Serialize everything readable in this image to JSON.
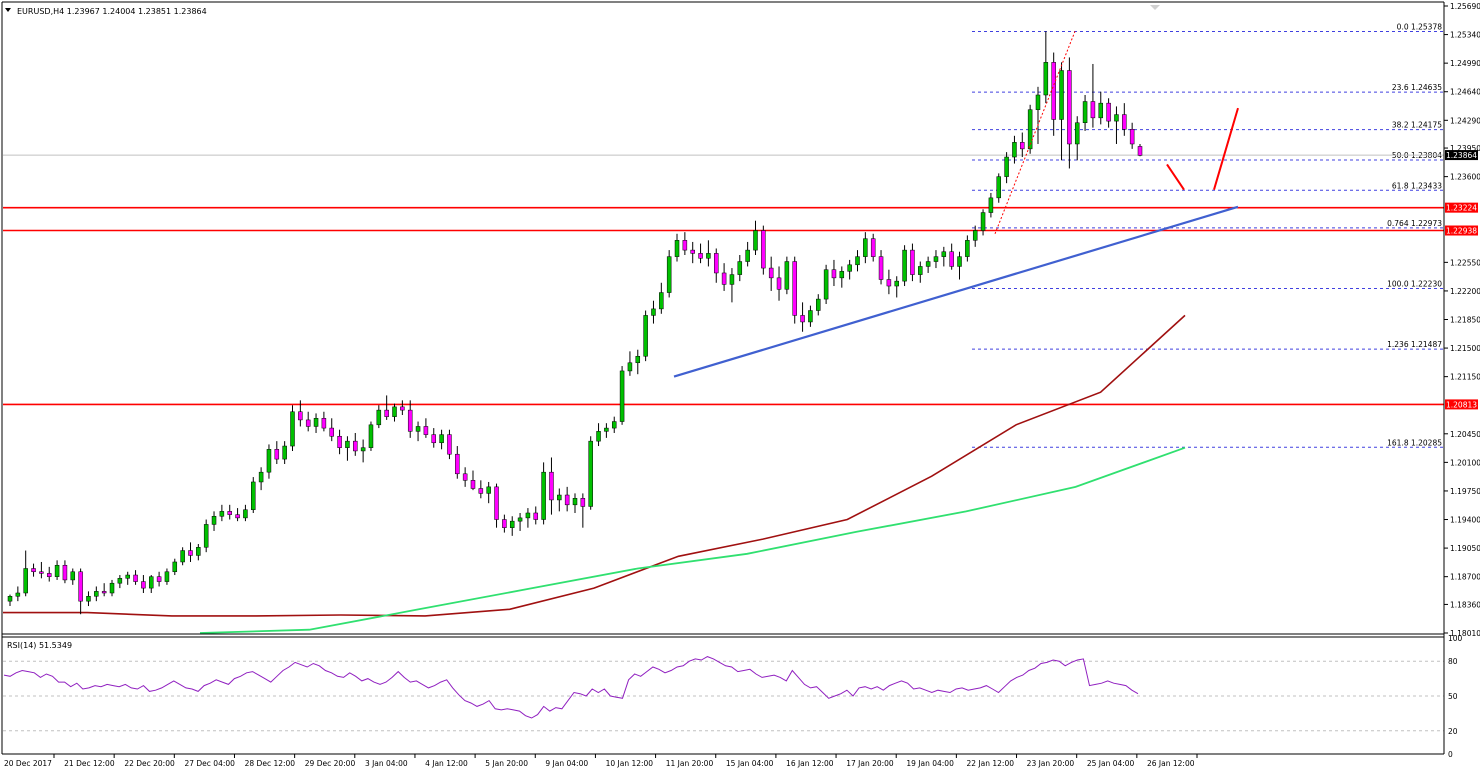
{
  "header": {
    "symbol_info": "EURUSD,H4  1.23967 1.24004 1.23851 1.23864"
  },
  "rsi_label": "RSI(14) 51.5349",
  "colors": {
    "bull": "#00c000",
    "bear": "#ff00ff",
    "hline": "#ff0000",
    "trend": "#4060d0",
    "ma200": "#a01010",
    "ma_green": "#30e070",
    "fib": "#4040e0",
    "rsi": "#9020c0",
    "grid": "#c0c0c0"
  },
  "chart_data": {
    "type": "candlestick",
    "price_axis": {
      "ylim": [
        1.1801,
        1.2569
      ],
      "ticks": [
        "1.25690",
        "1.25340",
        "1.24990",
        "1.24640",
        "1.24290",
        "1.23950",
        "1.23600",
        "1.22550",
        "1.22200",
        "1.21850",
        "1.21500",
        "1.21150",
        "1.20450",
        "1.20100",
        "1.19750",
        "1.19400",
        "1.19050",
        "1.18700",
        "1.18360",
        "1.18010"
      ]
    },
    "time_axis": {
      "labels": [
        "20 Dec 2017",
        "21 Dec 12:00",
        "22 Dec 20:00",
        "27 Dec 04:00",
        "28 Dec 12:00",
        "29 Dec 20:00",
        "3 Jan 04:00",
        "4 Jan 12:00",
        "5 Jan 20:00",
        "9 Jan 04:00",
        "10 Jan 12:00",
        "11 Jan 20:00",
        "15 Jan 04:00",
        "16 Jan 12:00",
        "17 Jan 20:00",
        "19 Jan 04:00",
        "22 Jan 12:00",
        "23 Jan 20:00",
        "25 Jan 04:00",
        "26 Jan 12:00"
      ]
    },
    "current_price": "1.23864",
    "horizontal_levels": [
      {
        "value": 1.2322,
        "label": "1.23224"
      },
      {
        "value": 1.2294,
        "label": "1.22938"
      },
      {
        "value": 1.2081,
        "label": "1.20813"
      }
    ],
    "fibonacci": [
      {
        "value": 1.25378,
        "label": "0.0  1.25378"
      },
      {
        "value": 1.24635,
        "label": "23.6  1.24635"
      },
      {
        "value": 1.24175,
        "label": "38.2  1.24175"
      },
      {
        "value": 1.23804,
        "label": "50.0  1.23804"
      },
      {
        "value": 1.23433,
        "label": "61.8  1.23433"
      },
      {
        "value": 1.22973,
        "label": "0.764  1.22973"
      },
      {
        "value": 1.2223,
        "label": "100.0  1.22230"
      },
      {
        "value": 1.21487,
        "label": "1.236  1.21487"
      },
      {
        "value": 1.20285,
        "label": "161.8  1.20285"
      }
    ],
    "candles": [
      [
        1.184,
        1.1848,
        1.1834,
        1.1846
      ],
      [
        1.1846,
        1.1858,
        1.184,
        1.185
      ],
      [
        1.185,
        1.1902,
        1.1846,
        1.188
      ],
      [
        1.188,
        1.1886,
        1.187,
        1.1876
      ],
      [
        1.1876,
        1.1888,
        1.1868,
        1.1874
      ],
      [
        1.1874,
        1.1882,
        1.1864,
        1.187
      ],
      [
        1.187,
        1.189,
        1.1866,
        1.1884
      ],
      [
        1.1884,
        1.189,
        1.1862,
        1.1866
      ],
      [
        1.1866,
        1.188,
        1.186,
        1.1876
      ],
      [
        1.1876,
        1.188,
        1.1824,
        1.184
      ],
      [
        1.184,
        1.1852,
        1.1834,
        1.1846
      ],
      [
        1.1846,
        1.1858,
        1.184,
        1.1852
      ],
      [
        1.1852,
        1.1862,
        1.1846,
        1.185
      ],
      [
        1.185,
        1.1866,
        1.1846,
        1.1862
      ],
      [
        1.1862,
        1.1872,
        1.1856,
        1.1868
      ],
      [
        1.1868,
        1.1876,
        1.186,
        1.1872
      ],
      [
        1.1872,
        1.1878,
        1.186,
        1.1864
      ],
      [
        1.1864,
        1.1872,
        1.185,
        1.1856
      ],
      [
        1.1856,
        1.1872,
        1.185,
        1.187
      ],
      [
        1.187,
        1.1876,
        1.1858,
        1.1864
      ],
      [
        1.1864,
        1.188,
        1.186,
        1.1876
      ],
      [
        1.1876,
        1.1892,
        1.1872,
        1.1888
      ],
      [
        1.1888,
        1.1906,
        1.1884,
        1.1902
      ],
      [
        1.1902,
        1.1912,
        1.1888,
        1.1896
      ],
      [
        1.1896,
        1.191,
        1.189,
        1.1906
      ],
      [
        1.1906,
        1.194,
        1.19,
        1.1934
      ],
      [
        1.1934,
        1.195,
        1.1926,
        1.1944
      ],
      [
        1.1944,
        1.1958,
        1.1938,
        1.195
      ],
      [
        1.195,
        1.1958,
        1.194,
        1.1946
      ],
      [
        1.1946,
        1.1954,
        1.1938,
        1.1942
      ],
      [
        1.1942,
        1.1958,
        1.1938,
        1.1952
      ],
      [
        1.1952,
        1.1992,
        1.1948,
        1.1986
      ],
      [
        1.1986,
        1.2004,
        1.1976,
        1.1998
      ],
      [
        1.1998,
        1.2032,
        1.199,
        1.2026
      ],
      [
        1.2026,
        1.2036,
        1.2008,
        1.2014
      ],
      [
        1.2014,
        1.2036,
        1.2008,
        1.203
      ],
      [
        1.203,
        1.208,
        1.2024,
        1.2072
      ],
      [
        1.2072,
        1.2086,
        1.2054,
        1.2062
      ],
      [
        1.2062,
        1.2072,
        1.2048,
        1.2054
      ],
      [
        1.2054,
        1.207,
        1.2046,
        1.2064
      ],
      [
        1.2064,
        1.2072,
        1.2048,
        1.2052
      ],
      [
        1.2052,
        1.2064,
        1.2036,
        1.2042
      ],
      [
        1.2042,
        1.205,
        1.202,
        1.2028
      ],
      [
        1.2028,
        1.2042,
        1.2012,
        1.2036
      ],
      [
        1.2036,
        1.2046,
        1.2018,
        1.2024
      ],
      [
        1.2024,
        1.2038,
        1.201,
        1.2028
      ],
      [
        1.2028,
        1.206,
        1.2024,
        1.2056
      ],
      [
        1.2056,
        1.208,
        1.2052,
        1.2074
      ],
      [
        1.2074,
        1.2092,
        1.2062,
        1.2066
      ],
      [
        1.2066,
        1.2082,
        1.206,
        1.2078
      ],
      [
        1.2078,
        1.2086,
        1.2068,
        1.2074
      ],
      [
        1.2074,
        1.2086,
        1.204,
        1.2048
      ],
      [
        1.2048,
        1.206,
        1.2036,
        1.2054
      ],
      [
        1.2054,
        1.2064,
        1.204,
        1.2044
      ],
      [
        1.2044,
        1.2052,
        1.2028,
        1.2034
      ],
      [
        1.2034,
        1.205,
        1.2026,
        1.2044
      ],
      [
        1.2044,
        1.205,
        1.2014,
        1.202
      ],
      [
        1.202,
        1.203,
        1.199,
        1.1996
      ],
      [
        1.1996,
        1.2004,
        1.198,
        1.1988
      ],
      [
        1.1988,
        1.2,
        1.1976,
        1.1978
      ],
      [
        1.1978,
        1.1988,
        1.1966,
        1.1972
      ],
      [
        1.1972,
        1.1986,
        1.196,
        1.198
      ],
      [
        1.198,
        1.1984,
        1.193,
        1.194
      ],
      [
        1.194,
        1.1946,
        1.1924,
        1.193
      ],
      [
        1.193,
        1.1944,
        1.192,
        1.1938
      ],
      [
        1.1938,
        1.1948,
        1.1926,
        1.1942
      ],
      [
        1.1942,
        1.1954,
        1.193,
        1.1948
      ],
      [
        1.1948,
        1.1956,
        1.1934,
        1.194
      ],
      [
        1.194,
        1.201,
        1.1934,
        1.1998
      ],
      [
        1.1998,
        1.2016,
        1.1946,
        1.1964
      ],
      [
        1.1964,
        1.1978,
        1.195,
        1.197
      ],
      [
        1.197,
        1.198,
        1.195,
        1.1958
      ],
      [
        1.1958,
        1.1972,
        1.1948,
        1.1966
      ],
      [
        1.1966,
        1.1972,
        1.193,
        1.1956
      ],
      [
        1.1956,
        1.2042,
        1.1952,
        1.2036
      ],
      [
        1.2036,
        1.2058,
        1.203,
        1.2048
      ],
      [
        1.2048,
        1.2058,
        1.204,
        1.2052
      ],
      [
        1.2052,
        1.2066,
        1.2046,
        1.206
      ],
      [
        1.206,
        1.2128,
        1.2056,
        1.2122
      ],
      [
        1.2122,
        1.2146,
        1.2116,
        1.2132
      ],
      [
        1.2132,
        1.2148,
        1.2118,
        1.214
      ],
      [
        1.214,
        1.2196,
        1.2134,
        1.219
      ],
      [
        1.219,
        1.2208,
        1.218,
        1.2198
      ],
      [
        1.2198,
        1.223,
        1.2192,
        1.2218
      ],
      [
        1.2218,
        1.227,
        1.2212,
        1.2262
      ],
      [
        1.2262,
        1.229,
        1.2256,
        1.2282
      ],
      [
        1.2282,
        1.2292,
        1.2264,
        1.227
      ],
      [
        1.227,
        1.228,
        1.2254,
        1.2266
      ],
      [
        1.2266,
        1.2278,
        1.2254,
        1.226
      ],
      [
        1.226,
        1.2282,
        1.225,
        1.2266
      ],
      [
        1.2266,
        1.2272,
        1.223,
        1.2242
      ],
      [
        1.2242,
        1.2254,
        1.222,
        1.2228
      ],
      [
        1.2228,
        1.2248,
        1.2206,
        1.224
      ],
      [
        1.224,
        1.2264,
        1.2232,
        1.2256
      ],
      [
        1.2256,
        1.228,
        1.225,
        1.227
      ],
      [
        1.227,
        1.2306,
        1.2264,
        1.2294
      ],
      [
        1.2294,
        1.23,
        1.224,
        1.2248
      ],
      [
        1.2248,
        1.2262,
        1.222,
        1.2236
      ],
      [
        1.2236,
        1.225,
        1.2208,
        1.2222
      ],
      [
        1.2222,
        1.2262,
        1.2216,
        1.2256
      ],
      [
        1.2256,
        1.2262,
        1.218,
        1.219
      ],
      [
        1.219,
        1.2206,
        1.217,
        1.2182
      ],
      [
        1.2182,
        1.2202,
        1.2176,
        1.2196
      ],
      [
        1.2196,
        1.2216,
        1.219,
        1.221
      ],
      [
        1.221,
        1.2252,
        1.2204,
        1.2246
      ],
      [
        1.2246,
        1.2258,
        1.2226,
        1.2236
      ],
      [
        1.2236,
        1.225,
        1.2224,
        1.2244
      ],
      [
        1.2244,
        1.2258,
        1.2234,
        1.2252
      ],
      [
        1.2252,
        1.227,
        1.2244,
        1.2262
      ],
      [
        1.2262,
        1.2292,
        1.2254,
        1.2284
      ],
      [
        1.2284,
        1.229,
        1.2256,
        1.2262
      ],
      [
        1.2262,
        1.227,
        1.2228,
        1.2234
      ],
      [
        1.2234,
        1.2246,
        1.2216,
        1.2226
      ],
      [
        1.2226,
        1.2238,
        1.2212,
        1.2232
      ],
      [
        1.2232,
        1.2276,
        1.2226,
        1.227
      ],
      [
        1.227,
        1.2278,
        1.2232,
        1.224
      ],
      [
        1.224,
        1.2256,
        1.223,
        1.225
      ],
      [
        1.225,
        1.2262,
        1.2242,
        1.2256
      ],
      [
        1.2256,
        1.227,
        1.2248,
        1.2262
      ],
      [
        1.2262,
        1.2274,
        1.225,
        1.2268
      ],
      [
        1.2268,
        1.2278,
        1.2246,
        1.225
      ],
      [
        1.225,
        1.2268,
        1.2234,
        1.2262
      ],
      [
        1.2262,
        1.2288,
        1.2256,
        1.2282
      ],
      [
        1.2282,
        1.23,
        1.2274,
        1.2294
      ],
      [
        1.2294,
        1.232,
        1.2288,
        1.2316
      ],
      [
        1.2316,
        1.234,
        1.231,
        1.2334
      ],
      [
        1.2334,
        1.2364,
        1.2328,
        1.236
      ],
      [
        1.236,
        1.239,
        1.2352,
        1.2384
      ],
      [
        1.2384,
        1.241,
        1.2376,
        1.2402
      ],
      [
        1.2402,
        1.2414,
        1.2384,
        1.2394
      ],
      [
        1.2394,
        1.2448,
        1.2388,
        1.2442
      ],
      [
        1.2442,
        1.247,
        1.24,
        1.246
      ],
      [
        1.246,
        1.2538,
        1.245,
        1.25
      ],
      [
        1.25,
        1.2512,
        1.241,
        1.243
      ],
      [
        1.243,
        1.25,
        1.238,
        1.249
      ],
      [
        1.249,
        1.2506,
        1.237,
        1.24
      ],
      [
        1.24,
        1.2434,
        1.238,
        1.2426
      ],
      [
        1.2426,
        1.246,
        1.2416,
        1.2452
      ],
      [
        1.2452,
        1.2498,
        1.242,
        1.2432
      ],
      [
        1.2432,
        1.2464,
        1.2424,
        1.245
      ],
      [
        1.245,
        1.2456,
        1.242,
        1.2428
      ],
      [
        1.2428,
        1.2446,
        1.24,
        1.2436
      ],
      [
        1.2436,
        1.245,
        1.241,
        1.2418
      ],
      [
        1.2418,
        1.2426,
        1.2394,
        1.24
      ],
      [
        1.2397,
        1.24,
        1.2385,
        1.2386
      ]
    ],
    "ma200": [
      [
        1.1826,
        1.1826
      ],
      [
        1.1822,
        1.1822
      ],
      [
        1.1822,
        1.1822
      ],
      [
        1.1823,
        1.1823
      ],
      [
        1.1822,
        1.1822
      ],
      [
        1.1832,
        1.183
      ],
      [
        1.1852,
        1.1856
      ],
      [
        1.1888,
        1.1895
      ],
      [
        1.1908,
        1.1916
      ],
      [
        1.1922,
        1.194
      ],
      [
        1.195,
        1.1993
      ],
      [
        1.2012,
        1.2056
      ],
      [
        1.2082,
        1.2096
      ],
      [
        1.2114,
        1.219
      ]
    ],
    "ma_green": [
      [
        1.1801,
        1.1805
      ],
      [
        1.182,
        1.183
      ],
      [
        1.184,
        1.1855
      ],
      [
        1.1868,
        1.188
      ],
      [
        1.189,
        1.1898
      ],
      [
        1.1912,
        1.1925
      ],
      [
        1.1938,
        1.195
      ],
      [
        1.1962,
        1.198
      ],
      [
        1.1995,
        1.2028
      ]
    ],
    "trendline": [
      [
        1.2115,
        1.2323
      ]
    ],
    "projection": [
      [
        1.2375,
        1.2344
      ],
      [
        1.2344,
        1.2444
      ]
    ],
    "fib_swing": [
      [
        1.229,
        1.2538
      ]
    ],
    "rsi": {
      "ticks": [
        "100",
        "80",
        "50",
        "20",
        "0"
      ],
      "levels": [
        80,
        50,
        20
      ],
      "values": [
        68,
        67,
        70,
        72,
        71,
        70,
        66,
        69,
        67,
        62,
        62,
        58,
        61,
        56,
        57,
        59,
        58,
        60,
        59,
        58,
        60,
        57,
        56,
        59,
        54,
        55,
        57,
        60,
        63,
        60,
        57,
        56,
        54,
        59,
        61,
        64,
        62,
        60,
        65,
        67,
        70,
        71,
        68,
        65,
        62,
        67,
        72,
        75,
        79,
        77,
        75,
        78,
        76,
        72,
        70,
        67,
        66,
        70,
        67,
        63,
        65,
        62,
        60,
        62,
        66,
        71,
        66,
        62,
        63,
        60,
        57,
        59,
        62,
        64,
        57,
        51,
        46,
        44,
        41,
        43,
        46,
        39,
        38,
        39,
        38,
        37,
        33,
        31,
        34,
        41,
        37,
        40,
        39,
        46,
        53,
        52,
        50,
        56,
        53,
        56,
        50,
        49,
        48,
        64,
        69,
        67,
        71,
        75,
        73,
        70,
        72,
        75,
        76,
        80,
        82,
        81,
        84,
        82,
        79,
        76,
        75,
        71,
        72,
        73,
        69,
        66,
        67,
        68,
        66,
        63,
        72,
        66,
        60,
        57,
        58,
        53,
        48,
        50,
        52,
        55,
        50,
        57,
        58,
        56,
        58,
        55,
        59,
        61,
        63,
        61,
        56,
        57,
        55,
        53,
        55,
        54,
        53,
        56,
        57,
        55,
        56,
        57,
        59,
        56,
        53,
        58,
        63,
        66,
        68,
        72,
        74,
        78,
        79,
        81,
        80,
        76,
        79,
        81,
        82,
        59,
        60,
        61,
        63,
        61,
        60,
        59,
        55,
        52
      ]
    }
  }
}
